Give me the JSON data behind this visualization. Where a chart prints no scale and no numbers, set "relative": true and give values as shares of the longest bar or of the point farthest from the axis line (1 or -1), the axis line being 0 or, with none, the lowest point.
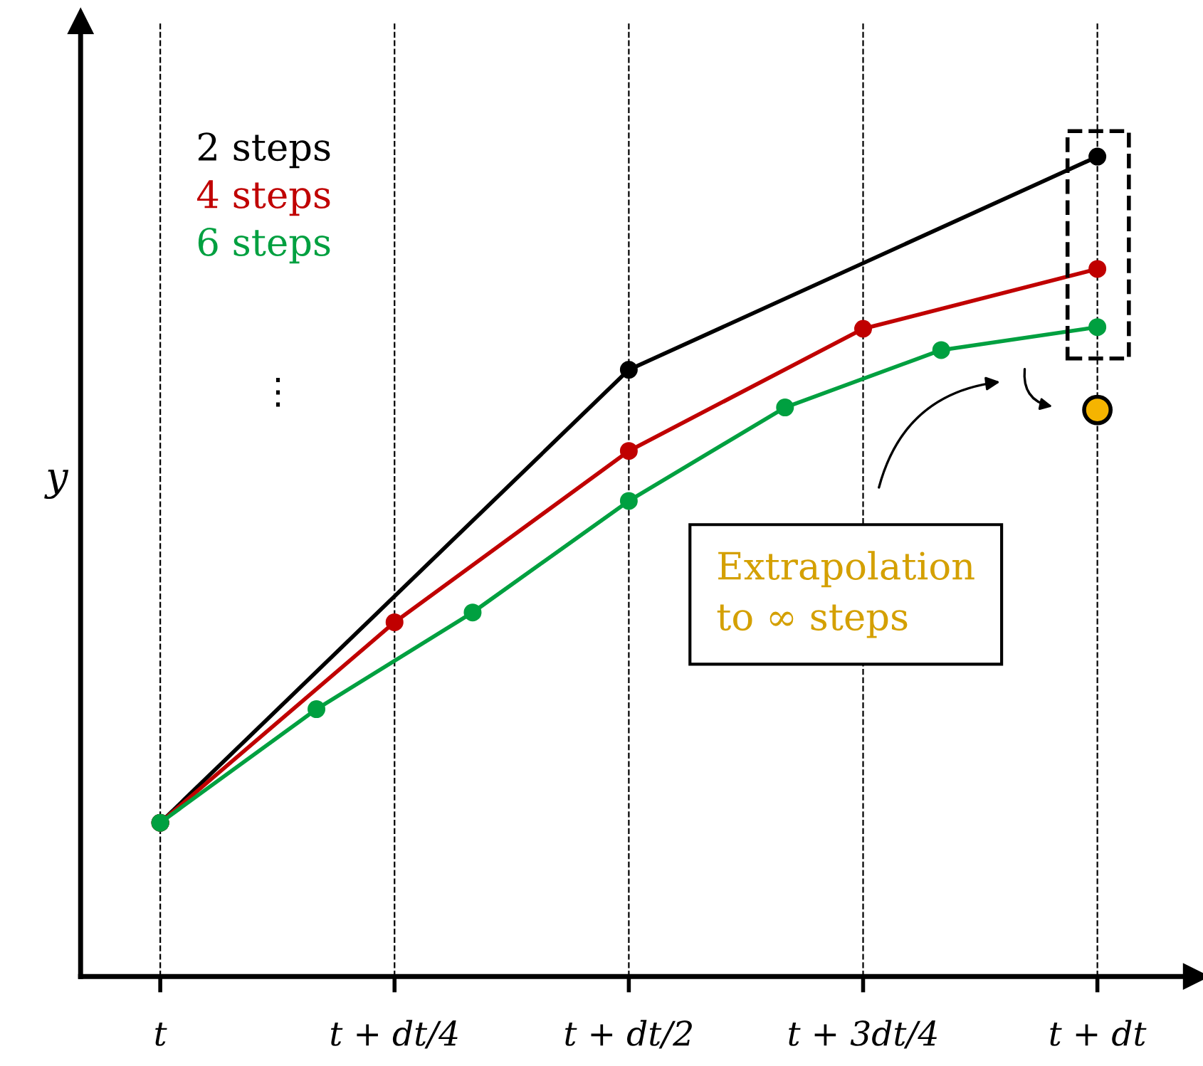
{
  "chart_data": {
    "type": "line",
    "relative": true,
    "ylabel": "y",
    "categories": [
      "t",
      null,
      null,
      "t + dt/4",
      null,
      null,
      "t + dt/2",
      null,
      null,
      "t + 3dt/4",
      null,
      null,
      "t + dt"
    ],
    "grid": "x",
    "marker": "circle",
    "legend": "top left",
    "series": [
      {
        "name": "2 steps",
        "color": "#000000",
        "values": [
          0.1875,
          null,
          null,
          null,
          null,
          null,
          0.74,
          null,
          null,
          null,
          null,
          null,
          1
        ]
      },
      {
        "name": "4 steps",
        "color": "#c00000",
        "values": [
          0.1875,
          null,
          null,
          0.432,
          null,
          null,
          0.641,
          null,
          null,
          0.79,
          null,
          null,
          0.863
        ]
      },
      {
        "name": "6 steps",
        "color": "#00a040",
        "values": [
          0.1875,
          null,
          0.326,
          null,
          0.444,
          null,
          0.58,
          null,
          0.694,
          null,
          0.764,
          null,
          0.792
        ]
      },
      {
        "type": "scatter",
        "color": "#f5b400",
        "values": [
          null,
          null,
          null,
          null,
          null,
          null,
          null,
          null,
          null,
          null,
          null,
          null,
          0.691
        ]
      }
    ],
    "annotations": [
      "⋮",
      "Extrapolation\nto ∞ steps"
    ]
  }
}
